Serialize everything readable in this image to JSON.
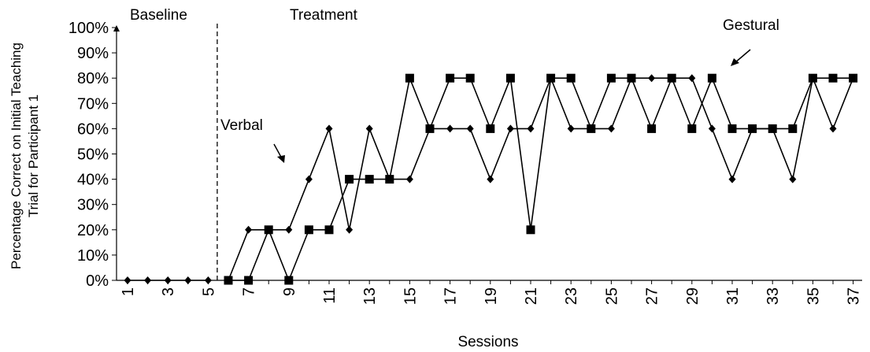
{
  "chart_data": {
    "type": "line",
    "title": "",
    "xlabel": "Sessions",
    "ylabel_line1": "Percentage Correct on Initial Teaching",
    "ylabel_line2": "Trial for Participant 1",
    "xlim": [
      1,
      37
    ],
    "ylim": [
      0,
      100
    ],
    "y_ticks": [
      "0%",
      "10%",
      "20%",
      "30%",
      "40%",
      "50%",
      "60%",
      "70%",
      "80%",
      "90%",
      "100%"
    ],
    "x_ticks": [
      1,
      3,
      5,
      7,
      9,
      11,
      13,
      15,
      17,
      19,
      21,
      23,
      25,
      27,
      29,
      31,
      33,
      35,
      37
    ],
    "phase_change_after_session": 5,
    "phase_labels": [
      "Baseline",
      "Treatment"
    ],
    "baseline": {
      "x": [
        1,
        2,
        3,
        4,
        5
      ],
      "values": [
        0,
        0,
        0,
        0,
        0
      ]
    },
    "series": [
      {
        "name": "Verbal",
        "marker": "diamond",
        "x": [
          6,
          7,
          8,
          9,
          10,
          11,
          12,
          13,
          14,
          15,
          16,
          17,
          18,
          19,
          20,
          21,
          22,
          23,
          24,
          25,
          26,
          27,
          28,
          29,
          30,
          31,
          32,
          33,
          34,
          35,
          36,
          37
        ],
        "values": [
          0,
          20,
          20,
          20,
          40,
          60,
          20,
          60,
          40,
          40,
          60,
          60,
          60,
          40,
          60,
          60,
          80,
          60,
          60,
          60,
          80,
          80,
          80,
          80,
          60,
          40,
          60,
          60,
          40,
          80,
          60,
          80
        ]
      },
      {
        "name": "Gestural",
        "marker": "square",
        "x": [
          6,
          7,
          8,
          9,
          10,
          11,
          12,
          13,
          14,
          15,
          16,
          17,
          18,
          19,
          20,
          21,
          22,
          23,
          24,
          25,
          26,
          27,
          28,
          29,
          30,
          31,
          32,
          33,
          34,
          35,
          36,
          37
        ],
        "values": [
          0,
          0,
          20,
          0,
          20,
          20,
          40,
          40,
          40,
          80,
          60,
          80,
          80,
          60,
          80,
          20,
          80,
          80,
          60,
          80,
          80,
          60,
          80,
          60,
          80,
          60,
          60,
          60,
          60,
          80,
          80,
          80
        ]
      }
    ],
    "grid": false,
    "legend": "none"
  }
}
